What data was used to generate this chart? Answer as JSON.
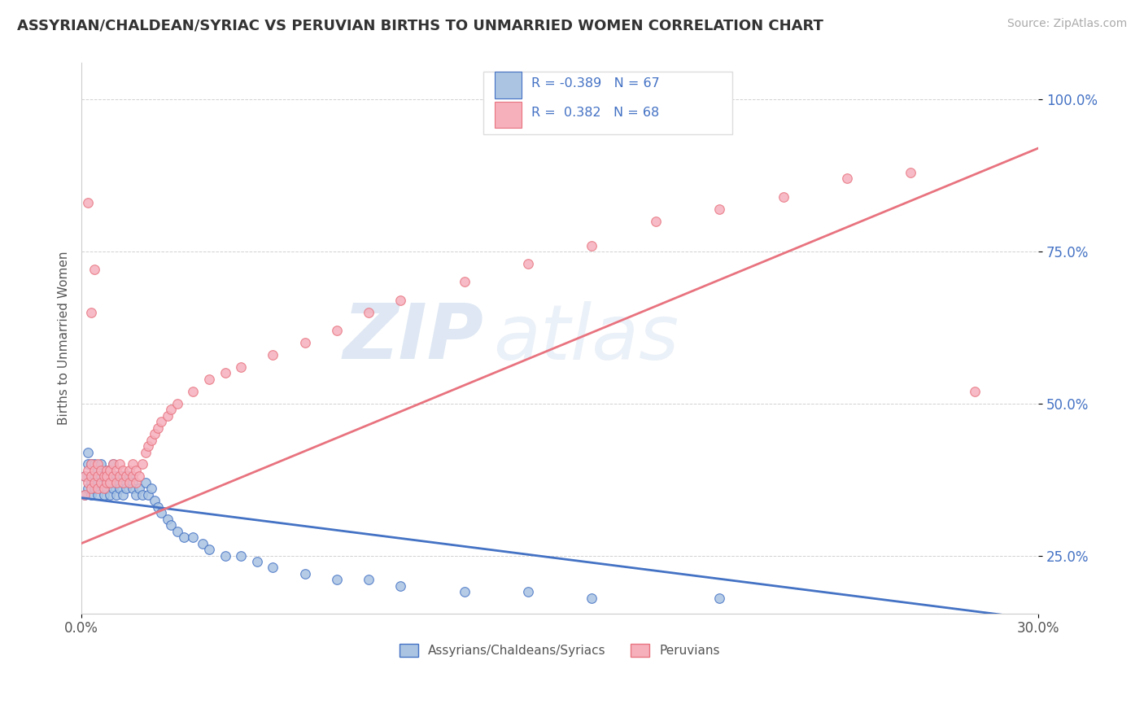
{
  "title": "ASSYRIAN/CHALDEAN/SYRIAC VS PERUVIAN BIRTHS TO UNMARRIED WOMEN CORRELATION CHART",
  "source": "Source: ZipAtlas.com",
  "ylabel": "Births to Unmarried Women",
  "yticks": [
    "25.0%",
    "50.0%",
    "75.0%",
    "100.0%"
  ],
  "ytick_vals": [
    0.25,
    0.5,
    0.75,
    1.0
  ],
  "legend_blue_label": "Assyrians/Chaldeans/Syriacs",
  "legend_pink_label": "Peruvians",
  "blue_color": "#aac4e2",
  "pink_color": "#f5b0bc",
  "blue_line_color": "#4472c4",
  "pink_line_color": "#e8737f",
  "legend_text_color": "#4472c4",
  "watermark_color": "#c8d8ec",
  "xmin": 0.0,
  "xmax": 0.3,
  "ymin": 0.155,
  "ymax": 1.06,
  "blue_trend_x": [
    0.0,
    0.3
  ],
  "blue_trend_y": [
    0.345,
    0.145
  ],
  "pink_trend_x": [
    0.0,
    0.3
  ],
  "pink_trend_y": [
    0.27,
    0.92
  ],
  "blue_scatter_x": [
    0.001,
    0.001,
    0.002,
    0.002,
    0.002,
    0.003,
    0.003,
    0.003,
    0.003,
    0.004,
    0.004,
    0.004,
    0.005,
    0.005,
    0.005,
    0.006,
    0.006,
    0.007,
    0.007,
    0.007,
    0.008,
    0.008,
    0.008,
    0.009,
    0.009,
    0.01,
    0.01,
    0.01,
    0.011,
    0.011,
    0.012,
    0.012,
    0.013,
    0.013,
    0.014,
    0.014,
    0.015,
    0.016,
    0.016,
    0.017,
    0.018,
    0.019,
    0.02,
    0.021,
    0.022,
    0.023,
    0.024,
    0.025,
    0.027,
    0.028,
    0.03,
    0.032,
    0.035,
    0.038,
    0.04,
    0.045,
    0.05,
    0.055,
    0.06,
    0.07,
    0.08,
    0.09,
    0.1,
    0.12,
    0.14,
    0.16,
    0.2
  ],
  "blue_scatter_y": [
    0.38,
    0.35,
    0.4,
    0.36,
    0.42,
    0.38,
    0.35,
    0.4,
    0.37,
    0.38,
    0.36,
    0.4,
    0.39,
    0.37,
    0.35,
    0.38,
    0.4,
    0.36,
    0.38,
    0.35,
    0.37,
    0.39,
    0.36,
    0.38,
    0.35,
    0.37,
    0.4,
    0.36,
    0.38,
    0.35,
    0.37,
    0.36,
    0.38,
    0.35,
    0.37,
    0.36,
    0.38,
    0.37,
    0.36,
    0.35,
    0.36,
    0.35,
    0.37,
    0.35,
    0.36,
    0.34,
    0.33,
    0.32,
    0.31,
    0.3,
    0.29,
    0.28,
    0.28,
    0.27,
    0.26,
    0.25,
    0.25,
    0.24,
    0.23,
    0.22,
    0.21,
    0.21,
    0.2,
    0.19,
    0.19,
    0.18,
    0.18
  ],
  "pink_scatter_x": [
    0.001,
    0.001,
    0.002,
    0.002,
    0.003,
    0.003,
    0.003,
    0.004,
    0.004,
    0.005,
    0.005,
    0.005,
    0.006,
    0.006,
    0.007,
    0.007,
    0.008,
    0.008,
    0.008,
    0.009,
    0.009,
    0.01,
    0.01,
    0.011,
    0.011,
    0.012,
    0.012,
    0.013,
    0.013,
    0.014,
    0.015,
    0.015,
    0.016,
    0.016,
    0.017,
    0.017,
    0.018,
    0.019,
    0.02,
    0.021,
    0.022,
    0.023,
    0.024,
    0.025,
    0.027,
    0.028,
    0.03,
    0.035,
    0.04,
    0.045,
    0.05,
    0.06,
    0.07,
    0.08,
    0.09,
    0.1,
    0.12,
    0.14,
    0.16,
    0.18,
    0.2,
    0.22,
    0.24,
    0.26,
    0.28,
    0.002,
    0.003,
    0.004
  ],
  "pink_scatter_y": [
    0.38,
    0.35,
    0.37,
    0.39,
    0.36,
    0.38,
    0.4,
    0.37,
    0.39,
    0.38,
    0.36,
    0.4,
    0.37,
    0.39,
    0.38,
    0.36,
    0.39,
    0.37,
    0.38,
    0.37,
    0.39,
    0.38,
    0.4,
    0.37,
    0.39,
    0.38,
    0.4,
    0.37,
    0.39,
    0.38,
    0.37,
    0.39,
    0.38,
    0.4,
    0.37,
    0.39,
    0.38,
    0.4,
    0.42,
    0.43,
    0.44,
    0.45,
    0.46,
    0.47,
    0.48,
    0.49,
    0.5,
    0.52,
    0.54,
    0.55,
    0.56,
    0.58,
    0.6,
    0.62,
    0.65,
    0.67,
    0.7,
    0.73,
    0.76,
    0.8,
    0.82,
    0.84,
    0.87,
    0.88,
    0.52,
    0.83,
    0.65,
    0.72
  ]
}
